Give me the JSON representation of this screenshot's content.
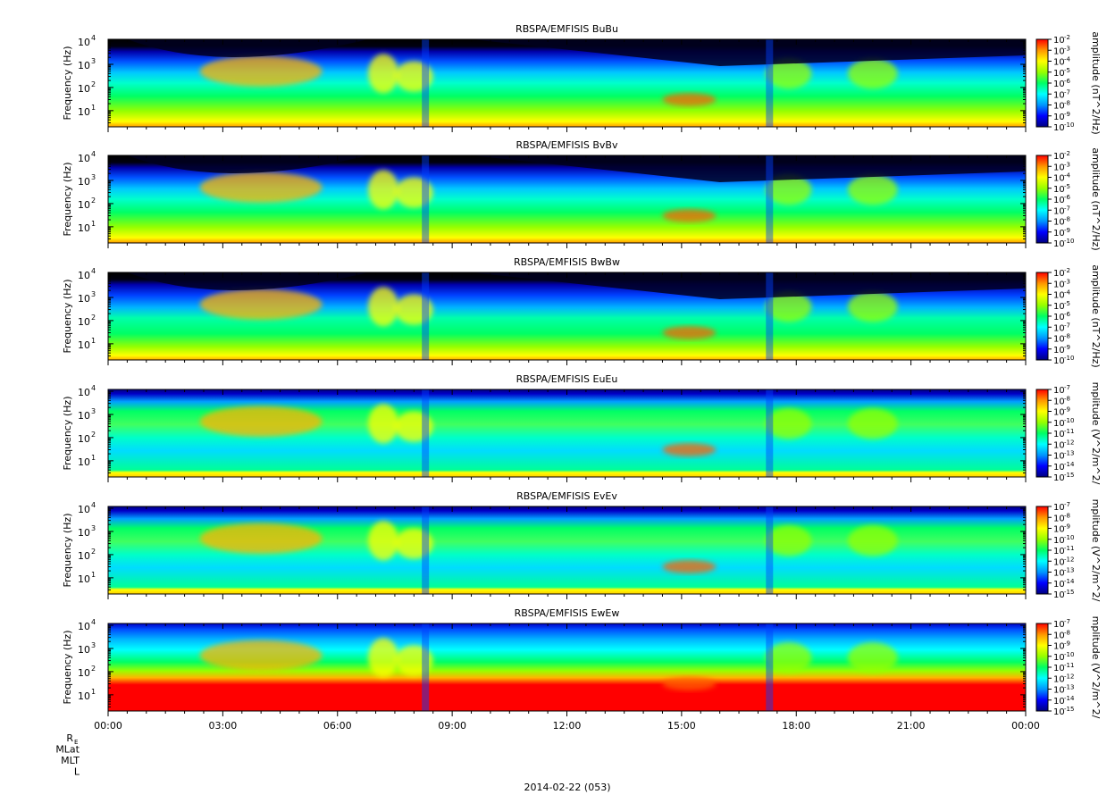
{
  "chart_data": {
    "type": "heatmap",
    "date_label": "2014-02-22 (053)",
    "ephemeris_labels": [
      "R",
      "MLat",
      "MLT",
      "L"
    ],
    "ephemeris_subscript": "E",
    "x_ticks": [
      "00:00",
      "03:00",
      "06:00",
      "09:00",
      "12:00",
      "15:00",
      "18:00",
      "21:00",
      "00:00"
    ],
    "x_range_hours": [
      0,
      24
    ],
    "y_scale": "log",
    "y_range_hz": [
      2,
      12000
    ],
    "colorbar": {
      "colors": [
        "#000080",
        "#0000ff",
        "#0096ff",
        "#00ffff",
        "#00ff64",
        "#96ff00",
        "#ffff00",
        "#ff9600",
        "#ff0000"
      ]
    },
    "panels": [
      {
        "title": "RBSPA/EMFISIS  BuBu",
        "ylabel": "Frequency (Hz)",
        "y_ticks": [
          {
            "base": "10",
            "exp": "1"
          },
          {
            "base": "10",
            "exp": "2"
          },
          {
            "base": "10",
            "exp": "3"
          },
          {
            "base": "10",
            "exp": "4"
          }
        ],
        "colorbar_title": "amplitude (nT^2/Hz)",
        "colorbar_ticks": [
          "-2",
          "-3",
          "-4",
          "-5",
          "-6",
          "-7",
          "-8",
          "-9",
          "-10"
        ],
        "kind": "B"
      },
      {
        "title": "RBSPA/EMFISIS  BvBv",
        "ylabel": "Frequency (Hz)",
        "y_ticks": [
          {
            "base": "10",
            "exp": "1"
          },
          {
            "base": "10",
            "exp": "2"
          },
          {
            "base": "10",
            "exp": "3"
          },
          {
            "base": "10",
            "exp": "4"
          }
        ],
        "colorbar_title": "amplitude (nT^2/Hz)",
        "colorbar_ticks": [
          "-2",
          "-3",
          "-4",
          "-5",
          "-6",
          "-7",
          "-8",
          "-9",
          "-10"
        ],
        "kind": "B"
      },
      {
        "title": "RBSPA/EMFISIS  BwBw",
        "ylabel": "Frequency (Hz)",
        "y_ticks": [
          {
            "base": "10",
            "exp": "1"
          },
          {
            "base": "10",
            "exp": "2"
          },
          {
            "base": "10",
            "exp": "3"
          },
          {
            "base": "10",
            "exp": "4"
          }
        ],
        "colorbar_title": "amplitude (nT^2/Hz)",
        "colorbar_ticks": [
          "-2",
          "-3",
          "-4",
          "-5",
          "-6",
          "-7",
          "-8",
          "-9",
          "-10"
        ],
        "kind": "Bw"
      },
      {
        "title": "RBSPA/EMFISIS  EuEu",
        "ylabel": "Frequency (Hz)",
        "y_ticks": [
          {
            "base": "10",
            "exp": "1"
          },
          {
            "base": "10",
            "exp": "2"
          },
          {
            "base": "10",
            "exp": "3"
          },
          {
            "base": "10",
            "exp": "4"
          }
        ],
        "colorbar_title": "mplitude (V^2/m^2/",
        "colorbar_ticks": [
          "-7",
          "-8",
          "-9",
          "-10",
          "-11",
          "-12",
          "-13",
          "-14",
          "-15"
        ],
        "kind": "E"
      },
      {
        "title": "RBSPA/EMFISIS  EvEv",
        "ylabel": "Frequency (Hz)",
        "y_ticks": [
          {
            "base": "10",
            "exp": "1"
          },
          {
            "base": "10",
            "exp": "2"
          },
          {
            "base": "10",
            "exp": "3"
          },
          {
            "base": "10",
            "exp": "4"
          }
        ],
        "colorbar_title": "mplitude (V^2/m^2/",
        "colorbar_ticks": [
          "-7",
          "-8",
          "-9",
          "-10",
          "-11",
          "-12",
          "-13",
          "-14",
          "-15"
        ],
        "kind": "E"
      },
      {
        "title": "RBSPA/EMFISIS  EwEw",
        "ylabel": "Frequency (Hz)",
        "y_ticks": [
          {
            "base": "10",
            "exp": "1"
          },
          {
            "base": "10",
            "exp": "2"
          },
          {
            "base": "10",
            "exp": "3"
          },
          {
            "base": "10",
            "exp": "4"
          }
        ],
        "colorbar_title": "mplitude (V^2/m^2/",
        "colorbar_ticks": [
          "-7",
          "-8",
          "-9",
          "-10",
          "-11",
          "-12",
          "-13",
          "-14",
          "-15"
        ],
        "kind": "Ew"
      }
    ]
  }
}
